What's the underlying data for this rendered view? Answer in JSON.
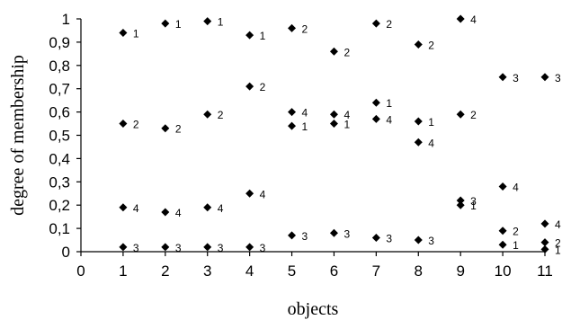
{
  "chart_data": {
    "type": "scatter",
    "xlabel": "objects",
    "ylabel": "degree of membership",
    "xlim": [
      0,
      11
    ],
    "ylim": [
      0,
      1
    ],
    "xticks": [
      0,
      1,
      2,
      3,
      4,
      5,
      6,
      7,
      8,
      9,
      10,
      11
    ],
    "yticks": [
      {
        "value": 0,
        "label": "0"
      },
      {
        "value": 0.1,
        "label": "0,1"
      },
      {
        "value": 0.2,
        "label": "0,2"
      },
      {
        "value": 0.3,
        "label": "0,3"
      },
      {
        "value": 0.4,
        "label": "0,4"
      },
      {
        "value": 0.5,
        "label": "0,5"
      },
      {
        "value": 0.6,
        "label": "0,6"
      },
      {
        "value": 0.7,
        "label": "0,7"
      },
      {
        "value": 0.8,
        "label": "0,8"
      },
      {
        "value": 0.9,
        "label": "0,9"
      },
      {
        "value": 1,
        "label": "1"
      }
    ],
    "grid": false,
    "marker": "diamond",
    "series": [
      {
        "label": "1",
        "x": [
          1,
          2,
          3,
          4,
          5,
          6,
          7,
          8,
          9,
          10,
          11
        ],
        "y": [
          0.94,
          0.98,
          0.99,
          0.93,
          0.54,
          0.55,
          0.64,
          0.56,
          0.2,
          0.03,
          0.01
        ]
      },
      {
        "label": "2",
        "x": [
          1,
          2,
          3,
          4,
          5,
          6,
          7,
          8,
          9,
          10,
          11
        ],
        "y": [
          0.55,
          0.53,
          0.59,
          0.71,
          0.96,
          0.86,
          0.98,
          0.89,
          0.59,
          0.09,
          0.04
        ]
      },
      {
        "label": "3",
        "x": [
          1,
          2,
          3,
          4,
          5,
          6,
          7,
          8,
          9,
          10,
          11
        ],
        "y": [
          0.02,
          0.02,
          0.02,
          0.02,
          0.07,
          0.08,
          0.06,
          0.05,
          0.22,
          0.75,
          0.75
        ]
      },
      {
        "label": "4",
        "x": [
          1,
          2,
          3,
          4,
          5,
          6,
          7,
          8,
          9,
          10,
          11
        ],
        "y": [
          0.19,
          0.17,
          0.19,
          0.25,
          0.6,
          0.59,
          0.57,
          0.47,
          1.0,
          0.28,
          0.12
        ]
      }
    ]
  }
}
